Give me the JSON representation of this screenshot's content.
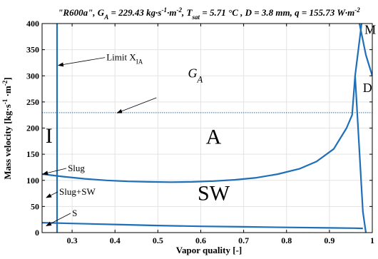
{
  "chart_data": {
    "type": "line",
    "title_parts": [
      {
        "t": "\"R600a\", G",
        "sub": false,
        "sup": false
      },
      {
        "t": "A",
        "sub": true,
        "sup": false
      },
      {
        "t": " = 229.43 kg·s",
        "sub": false,
        "sup": false
      },
      {
        "t": "-1",
        "sub": false,
        "sup": true
      },
      {
        "t": "·m",
        "sub": false,
        "sup": false
      },
      {
        "t": "-2",
        "sub": false,
        "sup": true
      },
      {
        "t": ", T",
        "sub": false,
        "sup": false
      },
      {
        "t": "sat",
        "sub": true,
        "sup": false
      },
      {
        "t": " = 5.71 °C , D = 3.8 mm, q = 155.73 W·m",
        "sub": false,
        "sup": false
      },
      {
        "t": "-2",
        "sub": false,
        "sup": true
      }
    ],
    "xlabel": "Vapor quality [-]",
    "ylabel_parts": [
      {
        "t": "Mass velocity [kg·s",
        "sup": false
      },
      {
        "t": "-1",
        "sup": true
      },
      {
        "t": " ·m",
        "sup": false
      },
      {
        "t": "-2",
        "sup": true
      },
      {
        "t": "]",
        "sup": false
      }
    ],
    "xlim": [
      0.23,
      1.0
    ],
    "ylim": [
      0,
      400
    ],
    "xticks": [
      0.3,
      0.4,
      0.5,
      0.6,
      0.7,
      0.8,
      0.9,
      1
    ],
    "xtick_labels": [
      "0.3",
      "0.4",
      "0.5",
      "0.6",
      "0.7",
      "0.8",
      "0.9",
      "1"
    ],
    "yticks": [
      0,
      50,
      100,
      150,
      200,
      250,
      300,
      350,
      400
    ],
    "ytick_labels": [
      "0",
      "50",
      "100",
      "150",
      "200",
      "250",
      "300",
      "350",
      "400"
    ],
    "grid": true,
    "line_color": "#1f6fb8",
    "series": [
      {
        "id": "limit_xia",
        "style": "solid",
        "x": [
          0.265,
          0.265
        ],
        "y": [
          0,
          400
        ]
      },
      {
        "id": "g_a",
        "style": "dotted",
        "x": [
          0.23,
          1.0
        ],
        "y": [
          229.43,
          229.43
        ]
      },
      {
        "id": "slug_sw",
        "style": "solid",
        "x": [
          0.23,
          0.28,
          0.33,
          0.38,
          0.43,
          0.48,
          0.53,
          0.58,
          0.63,
          0.68,
          0.73,
          0.78,
          0.83,
          0.87,
          0.91,
          0.94,
          0.953,
          0.96,
          0.975
        ],
        "y": [
          112,
          107,
          103,
          100,
          98,
          97,
          96.5,
          97,
          98.5,
          101,
          105,
          112,
          122,
          136,
          160,
          200,
          225,
          300,
          400
        ]
      },
      {
        "id": "sw_s",
        "style": "solid",
        "x": [
          0.23,
          0.3,
          0.4,
          0.5,
          0.6,
          0.7,
          0.8,
          0.9,
          0.96,
          0.978
        ],
        "y": [
          19,
          17.5,
          15.5,
          13.5,
          12,
          11,
          10,
          9,
          8.5,
          8
        ]
      },
      {
        "id": "d_right",
        "style": "solid",
        "x": [
          0.96,
          0.978,
          0.985
        ],
        "y": [
          300,
          40,
          0
        ]
      },
      {
        "id": "m_branch",
        "style": "solid",
        "x": [
          0.97,
          0.985,
          1.0
        ],
        "y": [
          400,
          340,
          300
        ]
      }
    ],
    "region_labels": [
      {
        "text": "I",
        "x": 0.238,
        "y": 172,
        "size": "big"
      },
      {
        "text": "A",
        "x": 0.63,
        "y": 170,
        "size": "big"
      },
      {
        "text": "SW",
        "x": 0.63,
        "y": 62,
        "size": "big"
      },
      {
        "text": "D",
        "x": 0.978,
        "y": 269,
        "size": "mid"
      },
      {
        "text": "M",
        "x": 0.982,
        "y": 380,
        "size": "mid"
      }
    ],
    "ga_label": {
      "main": "G",
      "sub": "A",
      "x": 0.57,
      "y": 297
    },
    "annotations": [
      {
        "label": "Limit X",
        "sub": "IA",
        "tx": 0.38,
        "ty": 335,
        "ax": 0.268,
        "ay": 320
      },
      {
        "label": "Slug",
        "sub": "",
        "tx": 0.29,
        "ty": 123,
        "ax": 0.232,
        "ay": 112
      },
      {
        "label": "Slug+SW",
        "sub": "",
        "tx": 0.27,
        "ty": 78,
        "ax": 0.24,
        "ay": 67
      },
      {
        "label": "S",
        "sub": "",
        "tx": 0.3,
        "ty": 37,
        "ax": 0.24,
        "ay": 13
      },
      {
        "label": "",
        "sub": "",
        "tx": 0.5,
        "ty": 258,
        "ax": 0.405,
        "ay": 229
      }
    ]
  }
}
